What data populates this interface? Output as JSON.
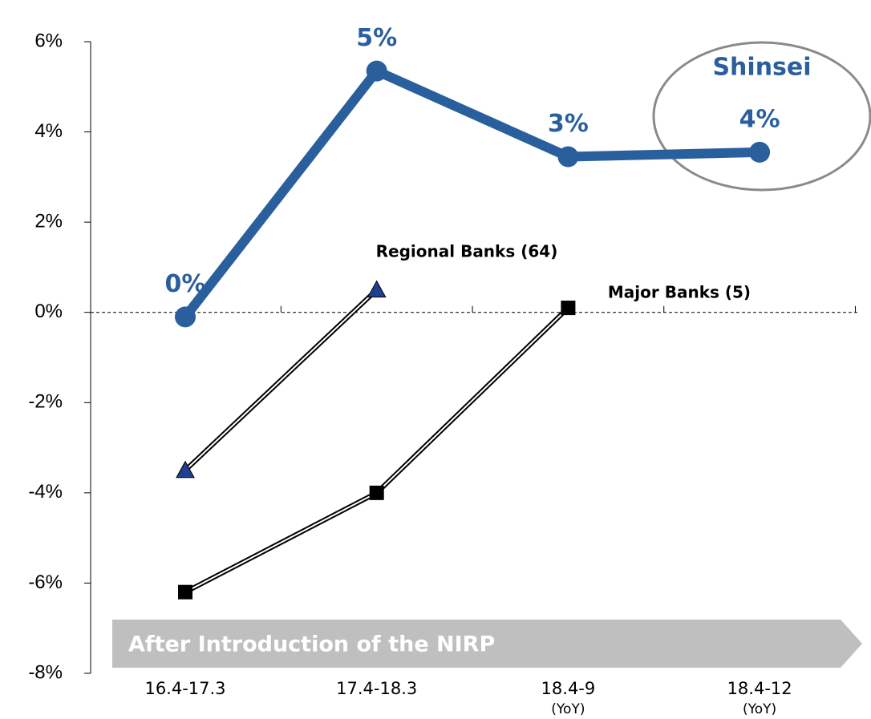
{
  "chart_data": {
    "type": "line",
    "categories": [
      "16.4-17.3",
      "17.4-18.3",
      "18.4-9",
      "18.4-12"
    ],
    "category_notes": [
      null,
      null,
      "(YoY)",
      "(YoY)"
    ],
    "ylim": [
      -8,
      6
    ],
    "yticks": [
      {
        "value": -8,
        "label": "-8%"
      },
      {
        "value": -6,
        "label": "-6%"
      },
      {
        "value": -4,
        "label": "-4%"
      },
      {
        "value": -2,
        "label": "-2%"
      },
      {
        "value": 0,
        "label": "0%"
      },
      {
        "value": 2,
        "label": "2%"
      },
      {
        "value": 4,
        "label": "4%"
      },
      {
        "value": 6,
        "label": "6%"
      }
    ],
    "annotation": "After Introduction of the NIRP",
    "series": [
      {
        "name": "Shinsei",
        "color": "#2a5f9e",
        "values": [
          -0.1,
          5.35,
          3.45,
          3.55
        ],
        "value_labels": [
          "0%",
          "5%",
          "3%",
          "4%"
        ]
      },
      {
        "name": "Regional Banks (64)",
        "color": "#1f3f8f",
        "values": [
          -3.5,
          0.5,
          null,
          null
        ]
      },
      {
        "name": "Major Banks (5)",
        "color": "#000000",
        "values": [
          -6.2,
          -4.0,
          0.1,
          null
        ]
      }
    ]
  }
}
